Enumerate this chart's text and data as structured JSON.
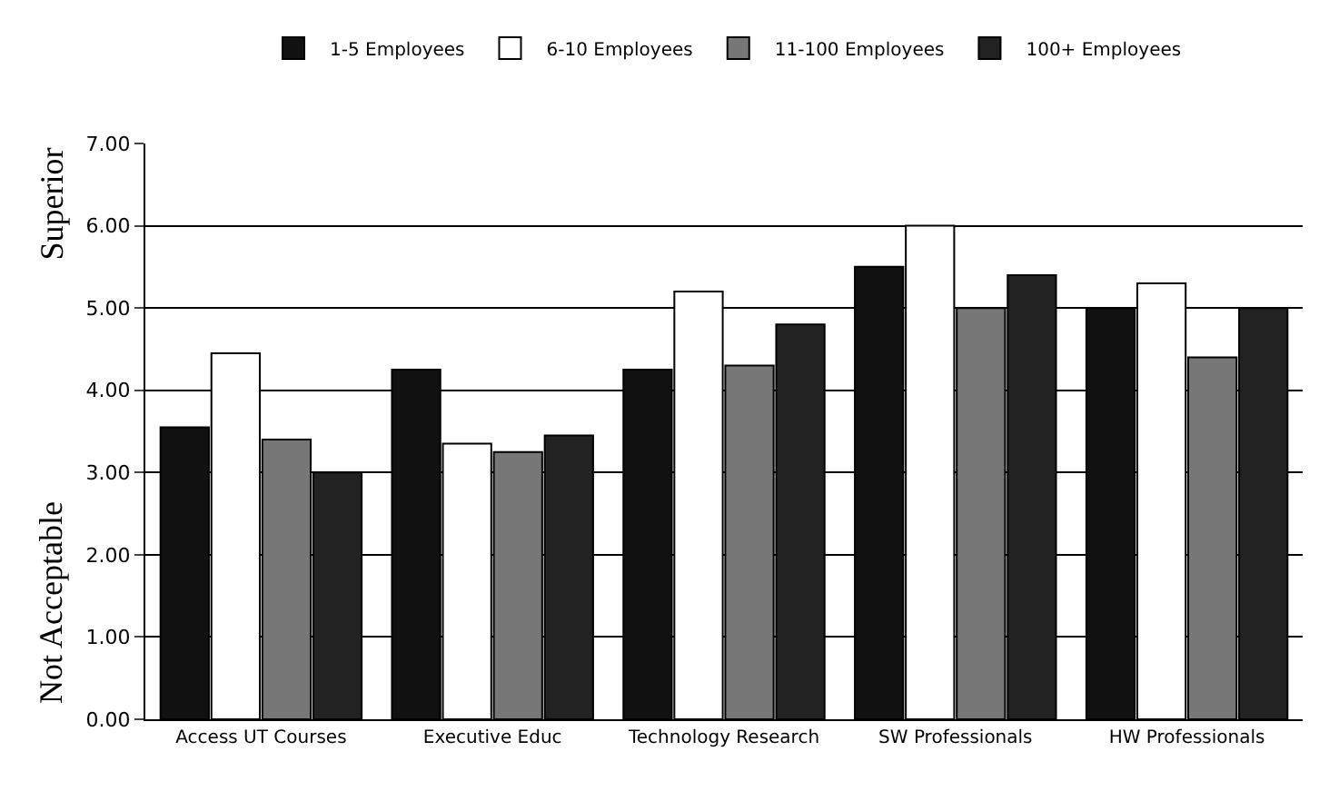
{
  "chart_data": {
    "type": "bar",
    "categories": [
      "Access UT Courses",
      "Executive Educ",
      "Technology Research",
      "SW Professionals",
      "HW Professionals"
    ],
    "series": [
      {
        "name": "1-5 Employees",
        "color": "#111111",
        "values": [
          3.55,
          4.25,
          4.25,
          5.5,
          5.0
        ]
      },
      {
        "name": "6-10 Employees",
        "color": "#ffffff",
        "values": [
          4.45,
          3.35,
          5.2,
          6.0,
          5.3
        ]
      },
      {
        "name": "11-100 Employees",
        "color": "#777777",
        "values": [
          3.4,
          3.25,
          4.3,
          5.0,
          4.4
        ]
      },
      {
        "name": "100+ Employees",
        "color": "#222222",
        "values": [
          3.0,
          3.45,
          4.8,
          5.4,
          5.0
        ]
      }
    ],
    "ylabel": "Not Acceptable",
    "annotations": [
      "Superior"
    ],
    "ylim": [
      0,
      7
    ],
    "yticks": [
      {
        "value": 0,
        "label": "0.00"
      },
      {
        "value": 1,
        "label": "1.00"
      },
      {
        "value": 2,
        "label": "2.00"
      },
      {
        "value": 3,
        "label": "3.00"
      },
      {
        "value": 4,
        "label": "4.00"
      },
      {
        "value": 5,
        "label": "5.00"
      },
      {
        "value": 6,
        "label": "6.00"
      },
      {
        "value": 7,
        "label": "7.00"
      }
    ],
    "grid": "y",
    "legend": "top"
  }
}
